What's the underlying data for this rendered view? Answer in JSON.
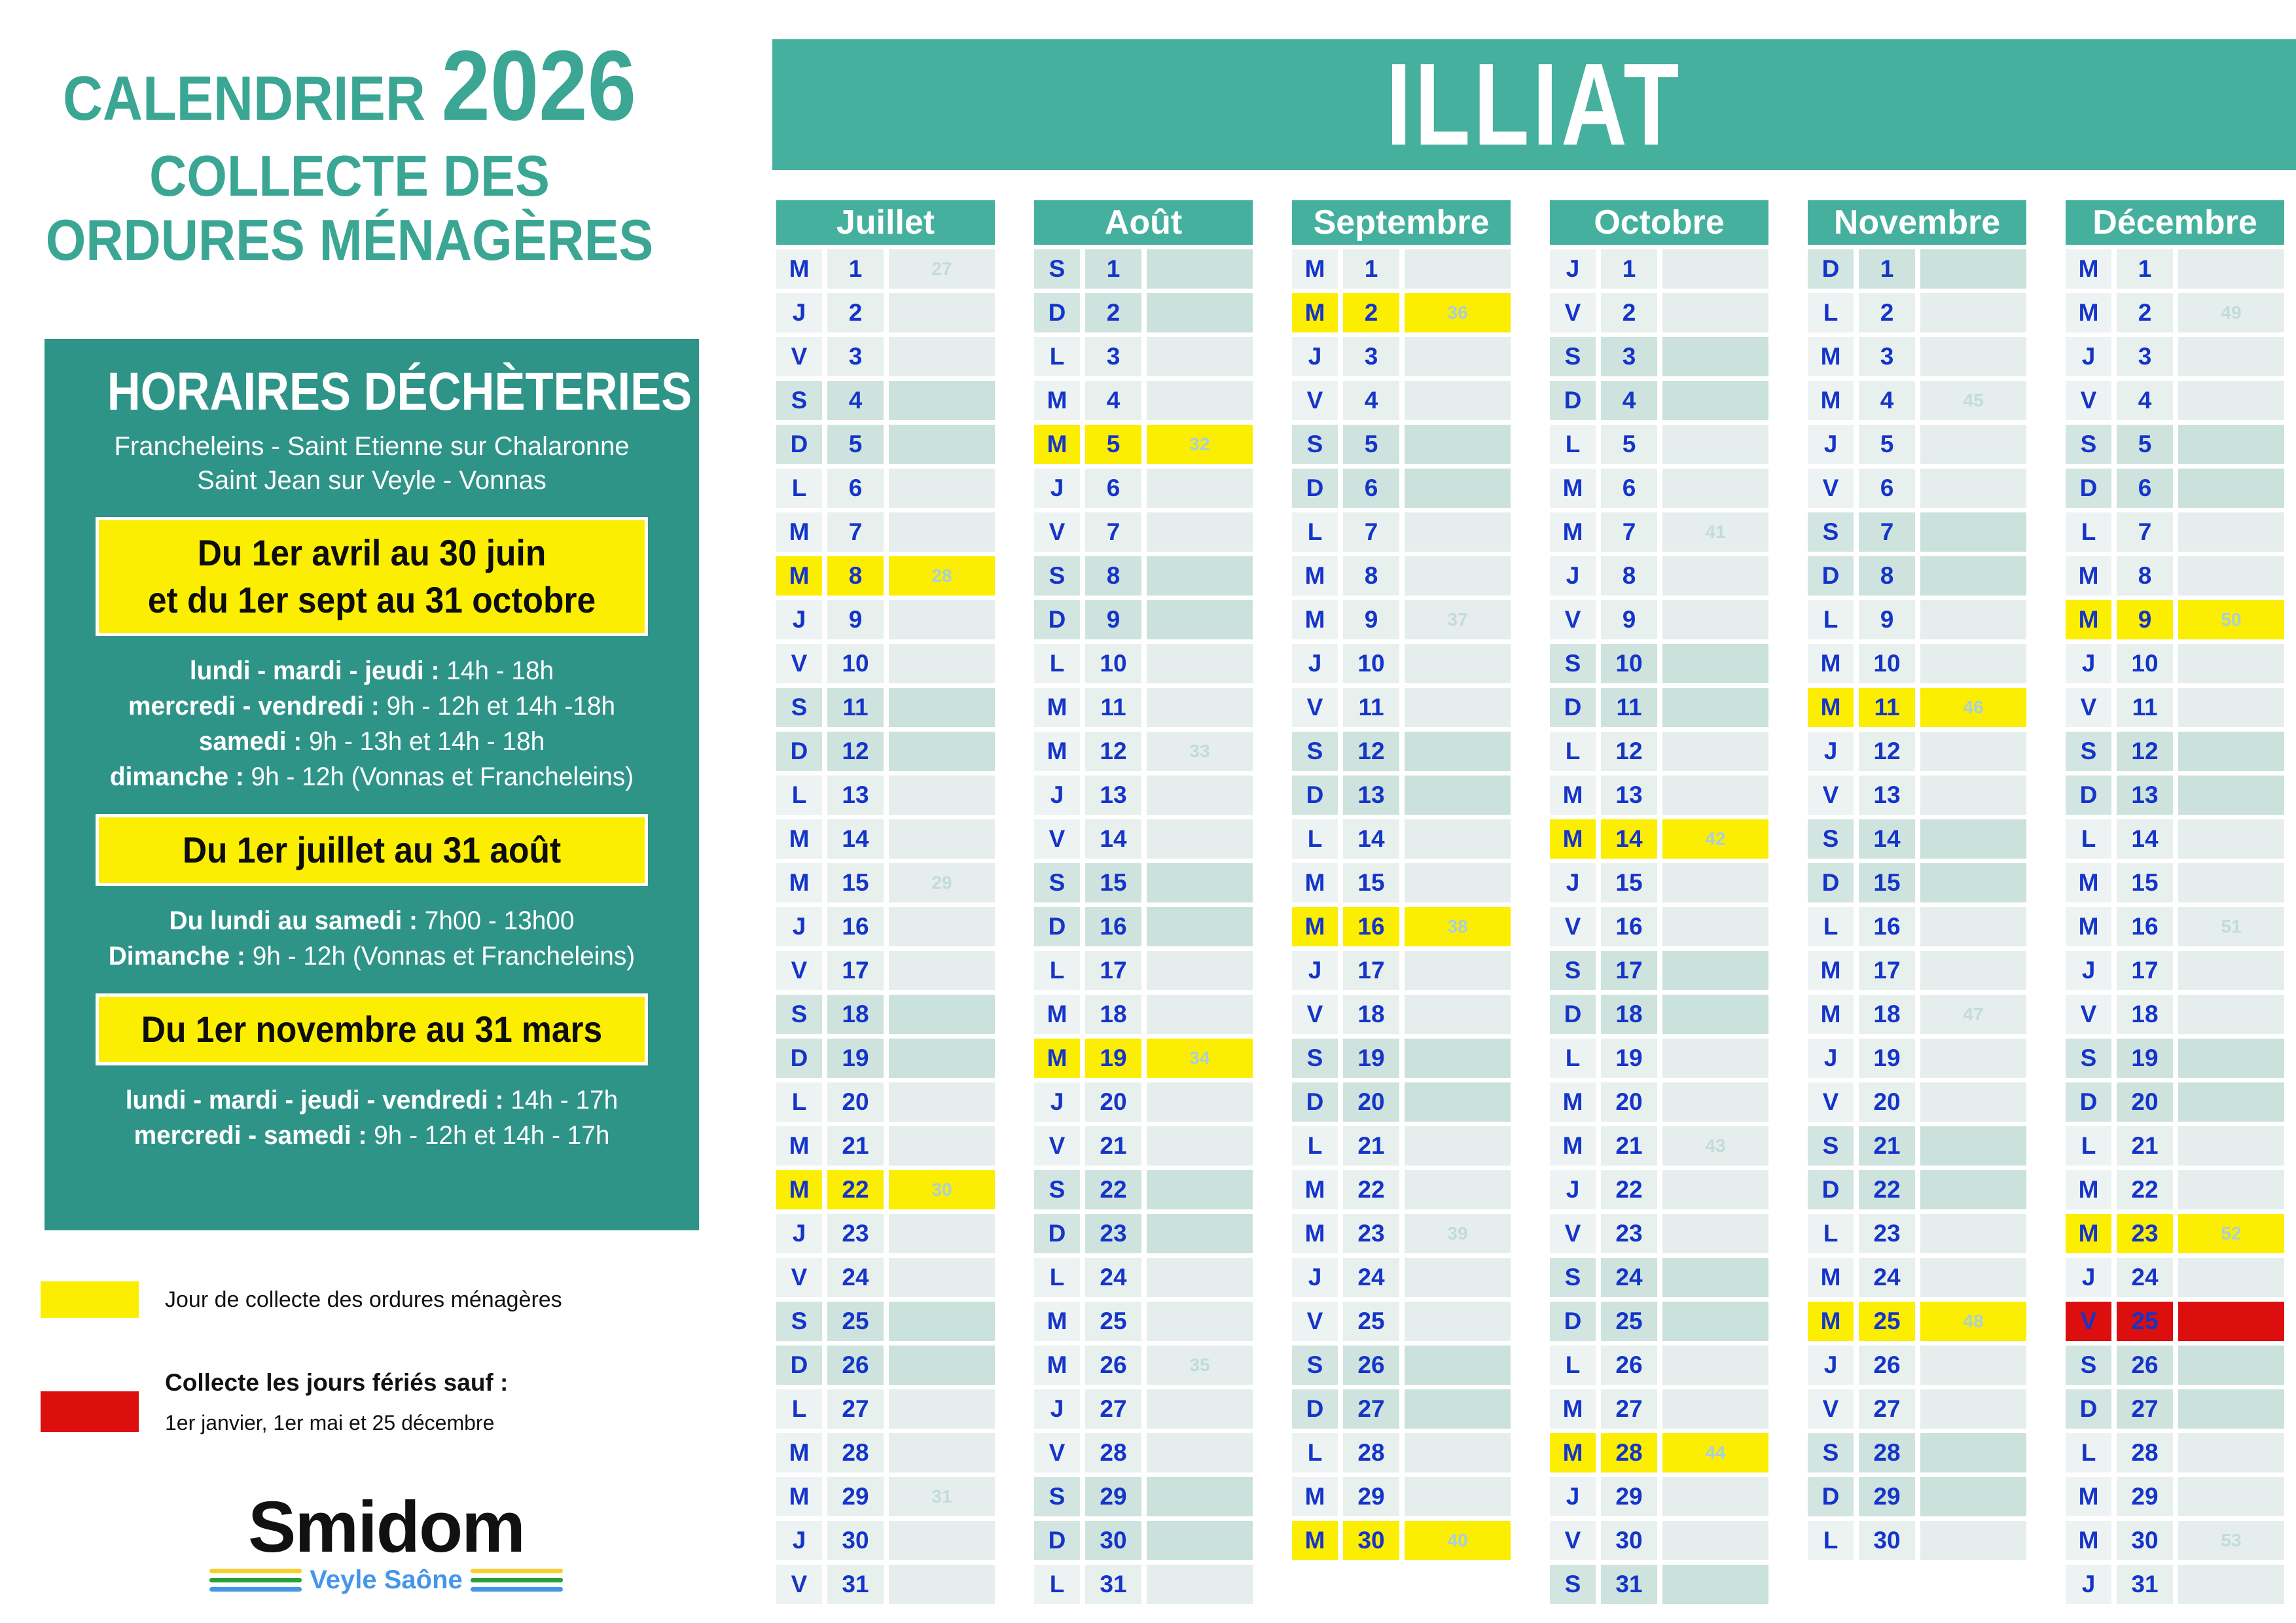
{
  "commune": "ILLIAT",
  "page": {
    "title_word": "CALENDRIER",
    "title_year": "2026",
    "subtitle_line1": "COLLECTE DES",
    "subtitle_line2": "ORDURES MÉNAGÈRES"
  },
  "dechetteries": {
    "heading": "HORAIRES DÉCHÈTERIES",
    "towns_line1": "Francheleins - Saint Etienne sur Chalaronne",
    "towns_line2": "Saint Jean sur Veyle - Vonnas",
    "period1": {
      "title_line1": "Du 1er avril au 30 juin",
      "title_line2": "et du 1er sept au 31 octobre",
      "lines": [
        {
          "b": "lundi - mardi - jeudi :",
          "r": " 14h - 18h"
        },
        {
          "b": "mercredi - vendredi :",
          "r": " 9h - 12h et 14h -18h"
        },
        {
          "b": "samedi :",
          "r": " 9h - 13h et 14h - 18h"
        },
        {
          "b": "dimanche :",
          "r": " 9h - 12h (Vonnas et Francheleins)"
        }
      ]
    },
    "period2": {
      "title_line1": "Du 1er juillet au 31 août",
      "lines": [
        {
          "b": "Du lundi au samedi :",
          "r": " 7h00 - 13h00"
        },
        {
          "b": "Dimanche :",
          "r": " 9h - 12h (Vonnas et Francheleins)"
        }
      ]
    },
    "period3": {
      "title_line1": "Du 1er novembre au 31 mars",
      "lines": [
        {
          "b": "lundi - mardi - jeudi - vendredi :",
          "r": " 14h - 17h"
        },
        {
          "b": "mercredi - samedi :",
          "r": " 9h - 12h et 14h - 17h"
        }
      ]
    }
  },
  "legend": {
    "collect_label": "Jour de collecte des ordures ménagères",
    "holiday_label_bold": "Collecte les jours fériés sauf :",
    "holiday_label_detail": "1er janvier, 1er mai et 25 décembre"
  },
  "logo": {
    "name": "Smidom",
    "tagline": "Veyle Saône"
  },
  "colors": {
    "teal_banner": "#45b09d",
    "teal_box": "#2f9488",
    "teal_title": "#3aa693",
    "day_text_blue": "#1535c8",
    "collect_yellow": "#fbee00",
    "holiday_red": "#dc0e0e",
    "weekday_cell": "#edf3f2",
    "weekend_cell": "#cee3de",
    "week_number_text": "#c2dcd7",
    "logo_stripe_yellow": "#f6cf2a",
    "logo_stripe_green": "#27a037",
    "logo_stripe_blue": "#4596e8"
  },
  "row_types_doc": "t: n=weekday, we=weekend, col=collection-day(yellow), hol=holiday-no-collect(red); w=ISO week number shown",
  "months": [
    {
      "name": "Juillet",
      "days": [
        {
          "l": "M",
          "n": 1,
          "w": 27
        },
        {
          "l": "J",
          "n": 2
        },
        {
          "l": "V",
          "n": 3
        },
        {
          "l": "S",
          "n": 4,
          "t": "we"
        },
        {
          "l": "D",
          "n": 5,
          "t": "we"
        },
        {
          "l": "L",
          "n": 6
        },
        {
          "l": "M",
          "n": 7
        },
        {
          "l": "M",
          "n": 8,
          "w": 28,
          "t": "col"
        },
        {
          "l": "J",
          "n": 9
        },
        {
          "l": "V",
          "n": 10
        },
        {
          "l": "S",
          "n": 11,
          "t": "we"
        },
        {
          "l": "D",
          "n": 12,
          "t": "we"
        },
        {
          "l": "L",
          "n": 13
        },
        {
          "l": "M",
          "n": 14
        },
        {
          "l": "M",
          "n": 15,
          "w": 29
        },
        {
          "l": "J",
          "n": 16
        },
        {
          "l": "V",
          "n": 17
        },
        {
          "l": "S",
          "n": 18,
          "t": "we"
        },
        {
          "l": "D",
          "n": 19,
          "t": "we"
        },
        {
          "l": "L",
          "n": 20
        },
        {
          "l": "M",
          "n": 21
        },
        {
          "l": "M",
          "n": 22,
          "w": 30,
          "t": "col"
        },
        {
          "l": "J",
          "n": 23
        },
        {
          "l": "V",
          "n": 24
        },
        {
          "l": "S",
          "n": 25,
          "t": "we"
        },
        {
          "l": "D",
          "n": 26,
          "t": "we"
        },
        {
          "l": "L",
          "n": 27
        },
        {
          "l": "M",
          "n": 28
        },
        {
          "l": "M",
          "n": 29,
          "w": 31
        },
        {
          "l": "J",
          "n": 30
        },
        {
          "l": "V",
          "n": 31
        }
      ]
    },
    {
      "name": "Août",
      "days": [
        {
          "l": "S",
          "n": 1,
          "t": "we"
        },
        {
          "l": "D",
          "n": 2,
          "t": "we"
        },
        {
          "l": "L",
          "n": 3
        },
        {
          "l": "M",
          "n": 4
        },
        {
          "l": "M",
          "n": 5,
          "w": 32,
          "t": "col"
        },
        {
          "l": "J",
          "n": 6
        },
        {
          "l": "V",
          "n": 7
        },
        {
          "l": "S",
          "n": 8,
          "t": "we"
        },
        {
          "l": "D",
          "n": 9,
          "t": "we"
        },
        {
          "l": "L",
          "n": 10
        },
        {
          "l": "M",
          "n": 11
        },
        {
          "l": "M",
          "n": 12,
          "w": 33
        },
        {
          "l": "J",
          "n": 13
        },
        {
          "l": "V",
          "n": 14
        },
        {
          "l": "S",
          "n": 15,
          "t": "we"
        },
        {
          "l": "D",
          "n": 16,
          "t": "we"
        },
        {
          "l": "L",
          "n": 17
        },
        {
          "l": "M",
          "n": 18
        },
        {
          "l": "M",
          "n": 19,
          "w": 34,
          "t": "col"
        },
        {
          "l": "J",
          "n": 20
        },
        {
          "l": "V",
          "n": 21
        },
        {
          "l": "S",
          "n": 22,
          "t": "we"
        },
        {
          "l": "D",
          "n": 23,
          "t": "we"
        },
        {
          "l": "L",
          "n": 24
        },
        {
          "l": "M",
          "n": 25
        },
        {
          "l": "M",
          "n": 26,
          "w": 35
        },
        {
          "l": "J",
          "n": 27
        },
        {
          "l": "V",
          "n": 28
        },
        {
          "l": "S",
          "n": 29,
          "t": "we"
        },
        {
          "l": "D",
          "n": 30,
          "t": "we"
        },
        {
          "l": "L",
          "n": 31
        }
      ]
    },
    {
      "name": "Septembre",
      "days": [
        {
          "l": "M",
          "n": 1
        },
        {
          "l": "M",
          "n": 2,
          "w": 36,
          "t": "col"
        },
        {
          "l": "J",
          "n": 3
        },
        {
          "l": "V",
          "n": 4
        },
        {
          "l": "S",
          "n": 5,
          "t": "we"
        },
        {
          "l": "D",
          "n": 6,
          "t": "we"
        },
        {
          "l": "L",
          "n": 7
        },
        {
          "l": "M",
          "n": 8
        },
        {
          "l": "M",
          "n": 9,
          "w": 37
        },
        {
          "l": "J",
          "n": 10
        },
        {
          "l": "V",
          "n": 11
        },
        {
          "l": "S",
          "n": 12,
          "t": "we"
        },
        {
          "l": "D",
          "n": 13,
          "t": "we"
        },
        {
          "l": "L",
          "n": 14
        },
        {
          "l": "M",
          "n": 15
        },
        {
          "l": "M",
          "n": 16,
          "w": 38,
          "t": "col"
        },
        {
          "l": "J",
          "n": 17
        },
        {
          "l": "V",
          "n": 18
        },
        {
          "l": "S",
          "n": 19,
          "t": "we"
        },
        {
          "l": "D",
          "n": 20,
          "t": "we"
        },
        {
          "l": "L",
          "n": 21
        },
        {
          "l": "M",
          "n": 22
        },
        {
          "l": "M",
          "n": 23,
          "w": 39
        },
        {
          "l": "J",
          "n": 24
        },
        {
          "l": "V",
          "n": 25
        },
        {
          "l": "S",
          "n": 26,
          "t": "we"
        },
        {
          "l": "D",
          "n": 27,
          "t": "we"
        },
        {
          "l": "L",
          "n": 28
        },
        {
          "l": "M",
          "n": 29
        },
        {
          "l": "M",
          "n": 30,
          "w": 40,
          "t": "col"
        }
      ]
    },
    {
      "name": "Octobre",
      "days": [
        {
          "l": "J",
          "n": 1
        },
        {
          "l": "V",
          "n": 2
        },
        {
          "l": "S",
          "n": 3,
          "t": "we"
        },
        {
          "l": "D",
          "n": 4,
          "t": "we"
        },
        {
          "l": "L",
          "n": 5
        },
        {
          "l": "M",
          "n": 6
        },
        {
          "l": "M",
          "n": 7,
          "w": 41
        },
        {
          "l": "J",
          "n": 8
        },
        {
          "l": "V",
          "n": 9
        },
        {
          "l": "S",
          "n": 10,
          "t": "we"
        },
        {
          "l": "D",
          "n": 11,
          "t": "we"
        },
        {
          "l": "L",
          "n": 12
        },
        {
          "l": "M",
          "n": 13
        },
        {
          "l": "M",
          "n": 14,
          "w": 42,
          "t": "col"
        },
        {
          "l": "J",
          "n": 15
        },
        {
          "l": "V",
          "n": 16
        },
        {
          "l": "S",
          "n": 17,
          "t": "we"
        },
        {
          "l": "D",
          "n": 18,
          "t": "we"
        },
        {
          "l": "L",
          "n": 19
        },
        {
          "l": "M",
          "n": 20
        },
        {
          "l": "M",
          "n": 21,
          "w": 43
        },
        {
          "l": "J",
          "n": 22
        },
        {
          "l": "V",
          "n": 23
        },
        {
          "l": "S",
          "n": 24,
          "t": "we"
        },
        {
          "l": "D",
          "n": 25,
          "t": "we"
        },
        {
          "l": "L",
          "n": 26
        },
        {
          "l": "M",
          "n": 27
        },
        {
          "l": "M",
          "n": 28,
          "w": 44,
          "t": "col"
        },
        {
          "l": "J",
          "n": 29
        },
        {
          "l": "V",
          "n": 30
        },
        {
          "l": "S",
          "n": 31,
          "t": "we"
        }
      ]
    },
    {
      "name": "Novembre",
      "days": [
        {
          "l": "D",
          "n": 1,
          "t": "we"
        },
        {
          "l": "L",
          "n": 2
        },
        {
          "l": "M",
          "n": 3
        },
        {
          "l": "M",
          "n": 4,
          "w": 45
        },
        {
          "l": "J",
          "n": 5
        },
        {
          "l": "V",
          "n": 6
        },
        {
          "l": "S",
          "n": 7,
          "t": "we"
        },
        {
          "l": "D",
          "n": 8,
          "t": "we"
        },
        {
          "l": "L",
          "n": 9
        },
        {
          "l": "M",
          "n": 10
        },
        {
          "l": "M",
          "n": 11,
          "w": 46,
          "t": "col"
        },
        {
          "l": "J",
          "n": 12
        },
        {
          "l": "V",
          "n": 13
        },
        {
          "l": "S",
          "n": 14,
          "t": "we"
        },
        {
          "l": "D",
          "n": 15,
          "t": "we"
        },
        {
          "l": "L",
          "n": 16
        },
        {
          "l": "M",
          "n": 17
        },
        {
          "l": "M",
          "n": 18,
          "w": 47
        },
        {
          "l": "J",
          "n": 19
        },
        {
          "l": "V",
          "n": 20
        },
        {
          "l": "S",
          "n": 21,
          "t": "we"
        },
        {
          "l": "D",
          "n": 22,
          "t": "we"
        },
        {
          "l": "L",
          "n": 23
        },
        {
          "l": "M",
          "n": 24
        },
        {
          "l": "M",
          "n": 25,
          "w": 48,
          "t": "col"
        },
        {
          "l": "J",
          "n": 26
        },
        {
          "l": "V",
          "n": 27
        },
        {
          "l": "S",
          "n": 28,
          "t": "we"
        },
        {
          "l": "D",
          "n": 29,
          "t": "we"
        },
        {
          "l": "L",
          "n": 30
        }
      ]
    },
    {
      "name": "Décembre",
      "days": [
        {
          "l": "M",
          "n": 1
        },
        {
          "l": "M",
          "n": 2,
          "w": 49
        },
        {
          "l": "J",
          "n": 3
        },
        {
          "l": "V",
          "n": 4
        },
        {
          "l": "S",
          "n": 5,
          "t": "we"
        },
        {
          "l": "D",
          "n": 6,
          "t": "we"
        },
        {
          "l": "L",
          "n": 7
        },
        {
          "l": "M",
          "n": 8
        },
        {
          "l": "M",
          "n": 9,
          "w": 50,
          "t": "col"
        },
        {
          "l": "J",
          "n": 10
        },
        {
          "l": "V",
          "n": 11
        },
        {
          "l": "S",
          "n": 12,
          "t": "we"
        },
        {
          "l": "D",
          "n": 13,
          "t": "we"
        },
        {
          "l": "L",
          "n": 14
        },
        {
          "l": "M",
          "n": 15
        },
        {
          "l": "M",
          "n": 16,
          "w": 51
        },
        {
          "l": "J",
          "n": 17
        },
        {
          "l": "V",
          "n": 18
        },
        {
          "l": "S",
          "n": 19,
          "t": "we"
        },
        {
          "l": "D",
          "n": 20,
          "t": "we"
        },
        {
          "l": "L",
          "n": 21
        },
        {
          "l": "M",
          "n": 22
        },
        {
          "l": "M",
          "n": 23,
          "w": 52,
          "t": "col"
        },
        {
          "l": "J",
          "n": 24
        },
        {
          "l": "V",
          "n": 25,
          "t": "hol"
        },
        {
          "l": "S",
          "n": 26,
          "t": "we"
        },
        {
          "l": "D",
          "n": 27,
          "t": "we"
        },
        {
          "l": "L",
          "n": 28
        },
        {
          "l": "M",
          "n": 29
        },
        {
          "l": "M",
          "n": 30,
          "w": 53
        },
        {
          "l": "J",
          "n": 31
        }
      ]
    }
  ]
}
